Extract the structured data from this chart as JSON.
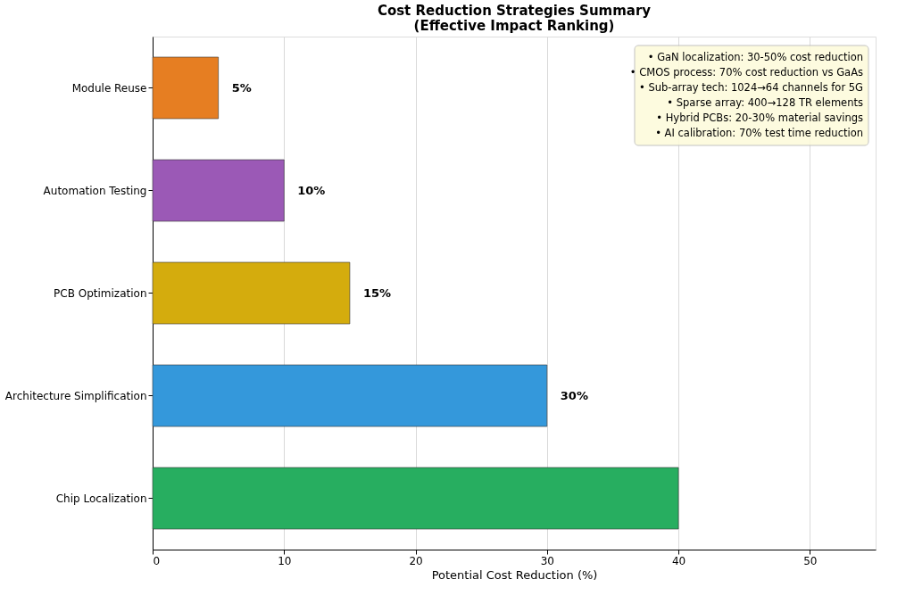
{
  "chart_data": {
    "type": "bar",
    "orientation": "horizontal",
    "title": "Cost Reduction Strategies Summary",
    "subtitle": "(Effective Impact Ranking)",
    "xlabel": "Potential Cost Reduction (%)",
    "categories": [
      "Module Reuse",
      "Automation Testing",
      "PCB Optimization",
      "Architecture Simplification",
      "Chip Localization"
    ],
    "values": [
      5,
      10,
      15,
      30,
      40
    ],
    "colors": [
      "#e67e22",
      "#9b59b6",
      "#d4ac0d",
      "#3498db",
      "#27ae60"
    ],
    "value_labels": [
      "5%",
      "10%",
      "15%",
      "30%",
      null
    ],
    "xlim": [
      0,
      55
    ],
    "xticks": [
      0,
      10,
      20,
      30,
      40,
      50
    ],
    "grid": "x",
    "annotations": [
      "• GaN localization: 30-50% cost reduction",
      "• CMOS process: 70% cost reduction vs GaAs",
      "• Sub-array tech: 1024→64 channels for 5G",
      "• Sparse array: 400→128 TR elements",
      "• Hybrid PCBs: 20-30% material savings",
      "• AI calibration: 70% test time reduction"
    ]
  }
}
